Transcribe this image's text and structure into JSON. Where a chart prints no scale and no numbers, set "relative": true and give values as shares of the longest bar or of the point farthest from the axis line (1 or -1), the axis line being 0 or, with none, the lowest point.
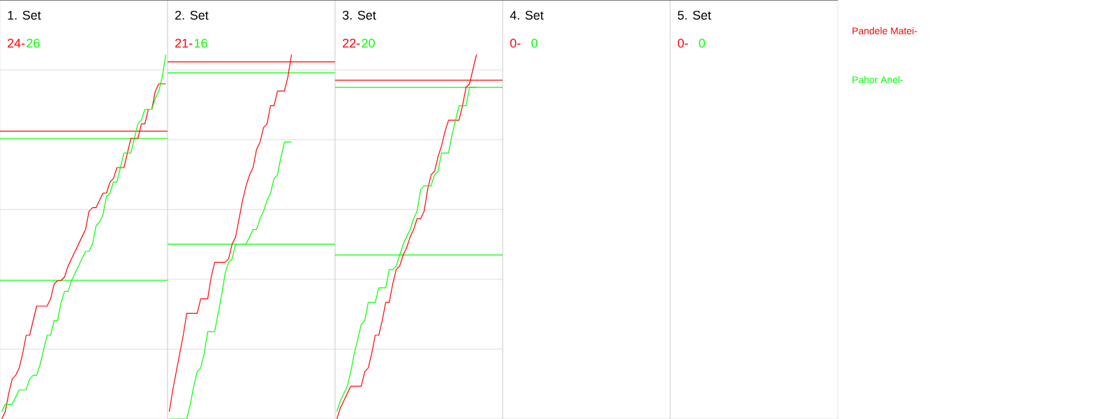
{
  "chart_data": [
    {
      "type": "line",
      "title": "1. Set",
      "annotations": [
        "24-",
        "26"
      ],
      "relative": true,
      "grid": "y",
      "categories": [
        null,
        null,
        null,
        null,
        null,
        null,
        null,
        null,
        null,
        null,
        null,
        null,
        null,
        null,
        null,
        null,
        null,
        null,
        null,
        null,
        null,
        null,
        null,
        null,
        null,
        null,
        null,
        null,
        null,
        null,
        null,
        null,
        null,
        null,
        null,
        null,
        null,
        null,
        null,
        null,
        null,
        null,
        null,
        null,
        null,
        null,
        null,
        null
      ],
      "ref_lines": [
        {
          "axis": "y",
          "value": 0.79,
          "color": "#ff0000"
        },
        {
          "axis": "y",
          "value": 0.77,
          "color": "#00ff00"
        },
        {
          "axis": "y",
          "value": 0.38,
          "color": "#00ff00"
        }
      ],
      "series": [
        {
          "color": "#ff0000",
          "values": [
            0,
            0.02,
            0.07,
            0.11,
            0.12,
            0.14,
            0.18,
            0.23,
            0.23,
            0.27,
            0.31,
            0.31,
            0.31,
            0.31,
            0.33,
            0.37,
            0.38,
            0.38,
            0.39,
            0.42,
            0.44,
            0.46,
            0.48,
            0.5,
            0.52,
            0.57,
            0.58,
            0.58,
            0.6,
            0.62,
            0.62,
            0.65,
            0.66,
            0.69,
            0.69,
            0.69,
            0.73,
            0.77,
            0.77,
            0.77,
            0.81,
            0.81,
            0.85,
            0.85,
            0.9,
            0.92,
            0.92,
            0.92
          ]
        },
        {
          "color": "#00ff00",
          "values": [
            0.02,
            0.04,
            0.04,
            0.04,
            0.06,
            0.08,
            0.08,
            0.08,
            0.11,
            0.12,
            0.12,
            0.15,
            0.19,
            0.23,
            0.23,
            0.27,
            0.27,
            0.32,
            0.35,
            0.35,
            0.38,
            0.4,
            0.42,
            0.44,
            0.46,
            0.46,
            0.48,
            0.53,
            0.54,
            0.56,
            0.61,
            0.62,
            0.65,
            0.65,
            0.69,
            0.73,
            0.73,
            0.73,
            0.77,
            0.81,
            0.82,
            0.85,
            0.85,
            0.85,
            0.88,
            0.9,
            0.94,
            1
          ]
        }
      ]
    },
    {
      "type": "line",
      "title": "2. Set",
      "annotations": [
        "21-",
        "16"
      ],
      "relative": true,
      "grid": "y",
      "categories": [
        null,
        null,
        null,
        null,
        null,
        null,
        null,
        null,
        null,
        null,
        null,
        null,
        null,
        null,
        null,
        null,
        null,
        null,
        null,
        null,
        null,
        null,
        null,
        null,
        null,
        null,
        null,
        null,
        null,
        null,
        null,
        null,
        null,
        null,
        null,
        null,
        null,
        null,
        null,
        null,
        null,
        null,
        null,
        null,
        null,
        null,
        null,
        null
      ],
      "ref_lines": [
        {
          "axis": "y",
          "value": 0.98,
          "color": "#ff0000"
        },
        {
          "axis": "y",
          "value": 0.95,
          "color": "#00ff00"
        },
        {
          "axis": "y",
          "value": 0.48,
          "color": "#00ff00"
        }
      ],
      "series": [
        {
          "color": "#ff0000",
          "values": [
            0.02,
            0.08,
            0.13,
            0.18,
            0.23,
            0.29,
            0.29,
            0.29,
            0.29,
            0.33,
            0.33,
            0.33,
            0.39,
            0.43,
            0.43,
            0.43,
            0.43,
            0.44,
            0.48,
            0.5,
            0.55,
            0.6,
            0.64,
            0.67,
            0.69,
            0.74,
            0.76,
            0.8,
            0.81,
            0.86,
            0.86,
            0.9,
            0.9,
            0.9,
            0.94,
            1,
            null,
            null,
            null,
            null,
            null,
            null,
            null,
            null,
            null,
            null,
            null,
            null
          ]
        },
        {
          "color": "#00ff00",
          "values": [
            0,
            0,
            0,
            0,
            0,
            0,
            0.04,
            0.09,
            0.13,
            0.14,
            0.18,
            0.24,
            0.24,
            0.24,
            0.29,
            0.34,
            0.4,
            0.43,
            0.44,
            0.48,
            0.48,
            0.48,
            0.48,
            0.5,
            0.52,
            0.52,
            0.55,
            0.57,
            0.6,
            0.62,
            0.66,
            0.67,
            0.72,
            0.76,
            0.76,
            0.76,
            null,
            null,
            null,
            null,
            null,
            null,
            null,
            null,
            null,
            null,
            null,
            null
          ]
        }
      ]
    },
    {
      "type": "line",
      "title": "3. Set",
      "annotations": [
        "22-",
        "20"
      ],
      "relative": true,
      "grid": "y",
      "categories": [
        null,
        null,
        null,
        null,
        null,
        null,
        null,
        null,
        null,
        null,
        null,
        null,
        null,
        null,
        null,
        null,
        null,
        null,
        null,
        null,
        null,
        null,
        null,
        null,
        null,
        null,
        null,
        null,
        null,
        null,
        null,
        null,
        null,
        null,
        null,
        null,
        null,
        null,
        null,
        null,
        null,
        null,
        null,
        null,
        null,
        null,
        null,
        null
      ],
      "ref_lines": [
        {
          "axis": "y",
          "value": 0.93,
          "color": "#ff0000"
        },
        {
          "axis": "y",
          "value": 0.91,
          "color": "#00ff00"
        },
        {
          "axis": "y",
          "value": 0.45,
          "color": "#00ff00"
        }
      ],
      "series": [
        {
          "color": "#ff0000",
          "values": [
            0,
            0.03,
            0.05,
            0.07,
            0.09,
            0.09,
            0.09,
            0.09,
            0.13,
            0.14,
            0.18,
            0.23,
            0.23,
            0.27,
            0.32,
            0.32,
            0.37,
            0.41,
            0.42,
            0.45,
            0.47,
            0.5,
            0.52,
            0.55,
            0.55,
            0.57,
            0.63,
            0.67,
            0.68,
            0.72,
            0.75,
            0.79,
            0.82,
            0.82,
            0.82,
            0.82,
            0.86,
            0.91,
            0.92,
            0.96,
            1,
            null,
            null,
            null,
            null,
            null,
            null,
            null
          ]
        },
        {
          "color": "#00ff00",
          "values": [
            0.02,
            0.05,
            0.07,
            0.09,
            0.13,
            0.18,
            0.22,
            0.26,
            0.27,
            0.32,
            0.32,
            0.32,
            0.36,
            0.36,
            0.36,
            0.41,
            0.41,
            0.42,
            0.45,
            0.48,
            0.5,
            0.52,
            0.55,
            0.57,
            0.63,
            0.64,
            0.64,
            0.64,
            0.67,
            0.68,
            0.73,
            0.73,
            0.73,
            0.78,
            0.82,
            0.86,
            0.86,
            0.86,
            0.91,
            0.91,
            0.91,
            null,
            null,
            null,
            null,
            null,
            null,
            null
          ]
        }
      ]
    },
    {
      "type": "other",
      "title": "4. Set",
      "annotations": [
        "0-",
        "0"
      ],
      "series": [
        {
          "color": "#ff0000"
        },
        {
          "color": "#00ff00"
        }
      ]
    },
    {
      "type": "other",
      "title": "5. Set",
      "annotations": [
        "0-",
        "0"
      ],
      "series": [
        {
          "name": "Pandele Matei-",
          "color": "#ff0000"
        },
        {
          "name": "Pahor Anel-",
          "color": "#00ff00"
        }
      ]
    }
  ]
}
